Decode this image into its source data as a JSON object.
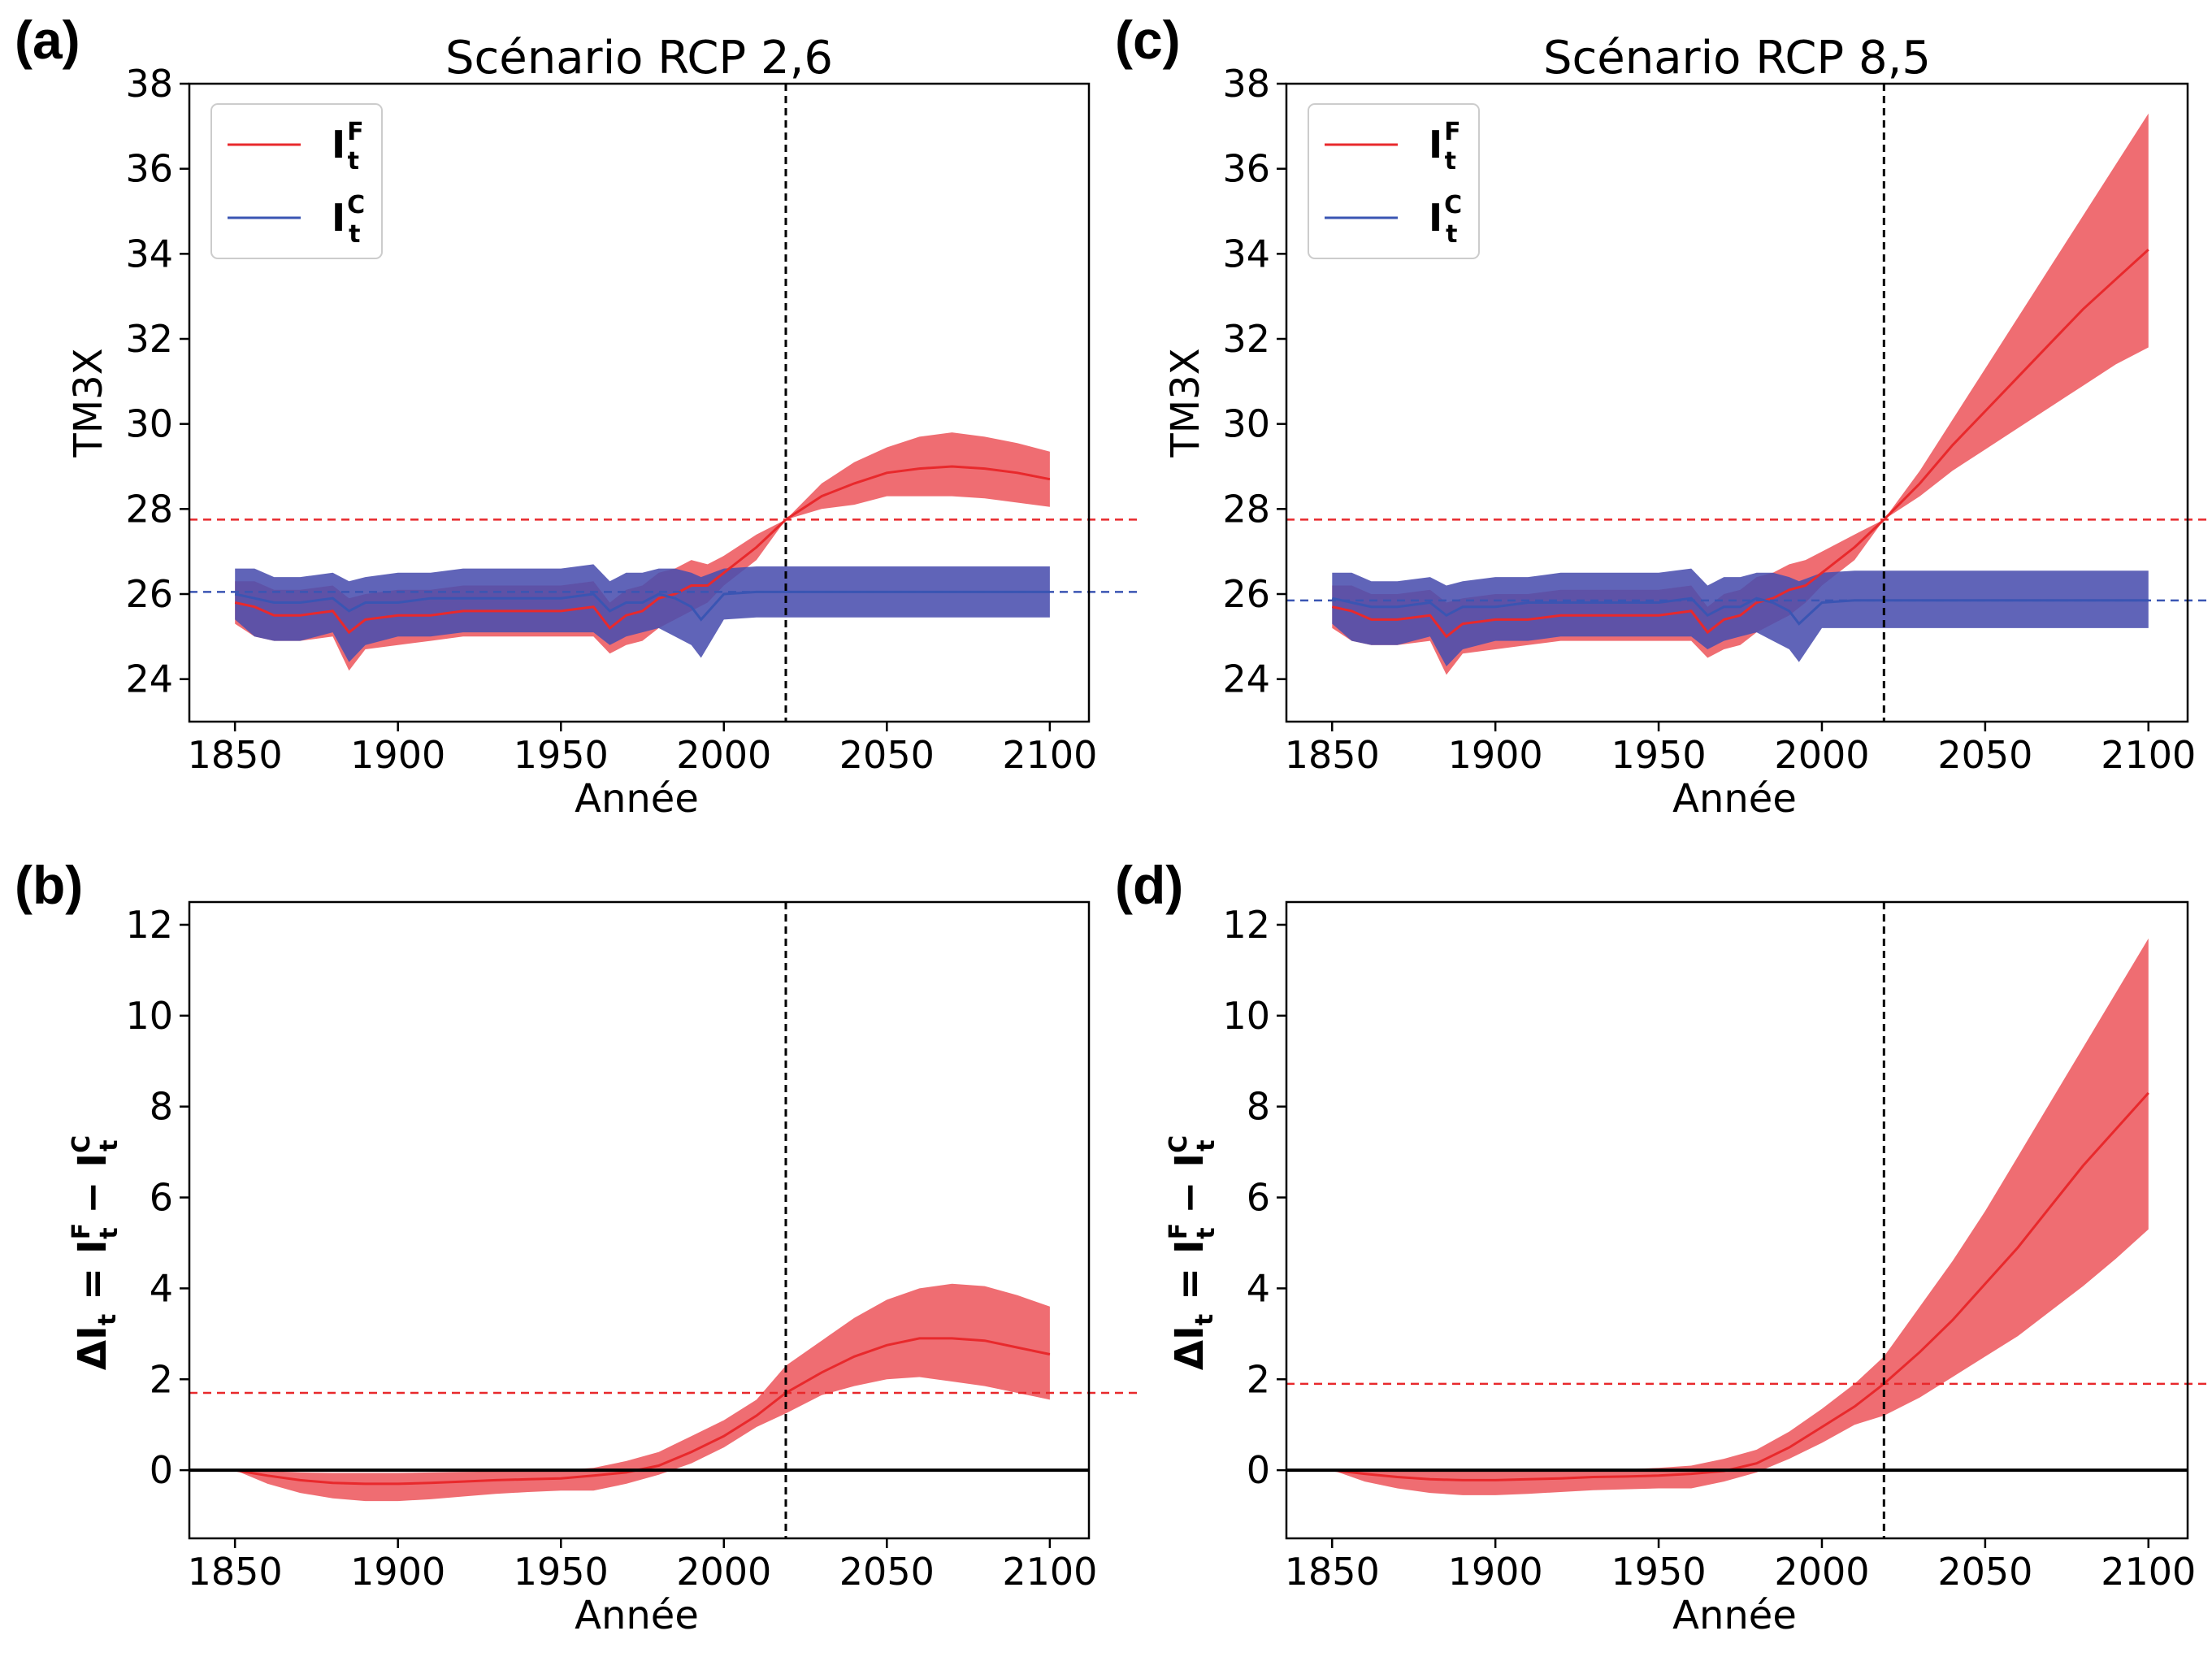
{
  "colors": {
    "factual": "#e8292c",
    "factual_band": "#ee6166",
    "counterfactual": "#3a55b3",
    "counterfactual_band": "#4a4fae",
    "overlap": "#5e2f8c",
    "event_line": "#000000"
  },
  "chart_data": [
    {
      "panel": "(a)",
      "type": "line",
      "title": "Scénario RCP 2,6",
      "xlabel": "Année",
      "ylabel": "TM3X",
      "xlim": [
        1836,
        2112
      ],
      "ylim": [
        23,
        38
      ],
      "xticks": [
        1850,
        1900,
        1950,
        2000,
        2050,
        2100
      ],
      "yticks": [
        24,
        26,
        28,
        30,
        32,
        34,
        36,
        38
      ],
      "event_year": 2019,
      "hlines": [
        {
          "y": 27.75,
          "color": "factual",
          "style": "dashed"
        },
        {
          "y": 26.05,
          "color": "counterfactual",
          "style": "dashed"
        }
      ],
      "legend": {
        "position": "top-left",
        "entries": [
          {
            "text": "I",
            "sup": "F",
            "sub": "t",
            "color": "factual"
          },
          {
            "text": "I",
            "sup": "C",
            "sub": "t",
            "color": "counterfactual"
          }
        ]
      },
      "series": [
        {
          "label": "I_t^F",
          "color": "factual",
          "x": [
            1850,
            1856,
            1862,
            1870,
            1880,
            1885,
            1890,
            1900,
            1910,
            1920,
            1930,
            1940,
            1950,
            1960,
            1965,
            1970,
            1975,
            1980,
            1985,
            1990,
            1995,
            2000,
            2010,
            2019,
            2030,
            2040,
            2050,
            2060,
            2070,
            2080,
            2090,
            2100
          ],
          "mid": [
            25.8,
            25.7,
            25.5,
            25.5,
            25.6,
            25.1,
            25.4,
            25.5,
            25.5,
            25.6,
            25.6,
            25.6,
            25.6,
            25.7,
            25.2,
            25.5,
            25.6,
            25.9,
            26.0,
            26.2,
            26.2,
            26.5,
            27.1,
            27.75,
            28.3,
            28.6,
            28.85,
            28.95,
            29.0,
            28.95,
            28.85,
            28.7
          ],
          "lower": [
            25.3,
            25.0,
            24.9,
            24.9,
            25.0,
            24.2,
            24.7,
            24.8,
            24.9,
            25.0,
            25.0,
            25.0,
            25.0,
            25.0,
            24.6,
            24.8,
            24.9,
            25.2,
            25.4,
            25.6,
            25.8,
            26.2,
            26.8,
            27.75,
            28.0,
            28.1,
            28.3,
            28.3,
            28.3,
            28.25,
            28.15,
            28.05
          ],
          "upper": [
            26.3,
            26.3,
            26.1,
            26.1,
            26.2,
            25.9,
            26.0,
            26.1,
            26.1,
            26.2,
            26.2,
            26.2,
            26.2,
            26.3,
            25.8,
            26.1,
            26.2,
            26.5,
            26.6,
            26.8,
            26.7,
            26.9,
            27.4,
            27.75,
            28.6,
            29.1,
            29.45,
            29.7,
            29.8,
            29.7,
            29.55,
            29.35
          ]
        },
        {
          "label": "I_t^C",
          "color": "counterfactual",
          "x": [
            1850,
            1856,
            1862,
            1870,
            1880,
            1885,
            1890,
            1900,
            1910,
            1920,
            1930,
            1940,
            1950,
            1960,
            1965,
            1970,
            1975,
            1980,
            1985,
            1990,
            1993,
            2000,
            2010,
            2019,
            2050,
            2100
          ],
          "mid": [
            26.0,
            25.9,
            25.8,
            25.8,
            25.9,
            25.6,
            25.8,
            25.8,
            25.9,
            25.9,
            25.9,
            25.9,
            25.9,
            26.0,
            25.6,
            25.8,
            25.8,
            26.0,
            25.9,
            25.7,
            25.4,
            26.0,
            26.05,
            26.05,
            26.05,
            26.05
          ],
          "lower": [
            25.4,
            25.0,
            24.9,
            24.9,
            25.1,
            24.4,
            24.8,
            25.0,
            25.0,
            25.1,
            25.1,
            25.1,
            25.1,
            25.1,
            24.8,
            25.0,
            25.1,
            25.2,
            25.0,
            24.8,
            24.5,
            25.4,
            25.45,
            25.45,
            25.45,
            25.45
          ],
          "upper": [
            26.6,
            26.6,
            26.4,
            26.4,
            26.5,
            26.3,
            26.4,
            26.5,
            26.5,
            26.6,
            26.6,
            26.6,
            26.6,
            26.7,
            26.3,
            26.5,
            26.5,
            26.6,
            26.6,
            26.5,
            26.4,
            26.6,
            26.65,
            26.65,
            26.65,
            26.65
          ]
        }
      ]
    },
    {
      "panel": "(c)",
      "type": "line",
      "title": "Scénario RCP 8,5",
      "xlabel": "Année",
      "ylabel": "TM3X",
      "xlim": [
        1836,
        2112
      ],
      "ylim": [
        23,
        38
      ],
      "xticks": [
        1850,
        1900,
        1950,
        2000,
        2050,
        2100
      ],
      "yticks": [
        24,
        26,
        28,
        30,
        32,
        34,
        36,
        38
      ],
      "event_year": 2019,
      "hlines": [
        {
          "y": 27.75,
          "color": "factual",
          "style": "dashed"
        },
        {
          "y": 25.85,
          "color": "counterfactual",
          "style": "dashed"
        }
      ],
      "legend": {
        "position": "top-left",
        "entries": [
          {
            "text": "I",
            "sup": "F",
            "sub": "t",
            "color": "factual"
          },
          {
            "text": "I",
            "sup": "C",
            "sub": "t",
            "color": "counterfactual"
          }
        ]
      },
      "series": [
        {
          "label": "I_t^F",
          "color": "factual",
          "x": [
            1850,
            1856,
            1862,
            1870,
            1880,
            1885,
            1890,
            1900,
            1910,
            1920,
            1930,
            1940,
            1950,
            1960,
            1965,
            1970,
            1975,
            1980,
            1985,
            1990,
            1995,
            2000,
            2010,
            2019,
            2030,
            2040,
            2050,
            2060,
            2070,
            2080,
            2090,
            2100
          ],
          "mid": [
            25.7,
            25.6,
            25.4,
            25.4,
            25.5,
            25.0,
            25.3,
            25.4,
            25.4,
            25.5,
            25.5,
            25.5,
            25.5,
            25.6,
            25.1,
            25.4,
            25.5,
            25.8,
            25.9,
            26.1,
            26.2,
            26.5,
            27.1,
            27.75,
            28.6,
            29.5,
            30.3,
            31.1,
            31.9,
            32.7,
            33.4,
            34.1
          ],
          "lower": [
            25.2,
            24.9,
            24.8,
            24.8,
            24.9,
            24.1,
            24.6,
            24.7,
            24.8,
            24.9,
            24.9,
            24.9,
            24.9,
            24.9,
            24.5,
            24.7,
            24.8,
            25.1,
            25.3,
            25.5,
            25.8,
            26.2,
            26.8,
            27.75,
            28.3,
            28.9,
            29.4,
            29.9,
            30.4,
            30.9,
            31.4,
            31.8
          ],
          "upper": [
            26.2,
            26.2,
            26.0,
            26.0,
            26.1,
            25.8,
            25.9,
            26.0,
            26.0,
            26.1,
            26.1,
            26.1,
            26.1,
            26.2,
            25.7,
            26.0,
            26.1,
            26.4,
            26.5,
            26.7,
            26.8,
            27.0,
            27.4,
            27.75,
            28.9,
            30.1,
            31.3,
            32.5,
            33.7,
            34.9,
            36.1,
            37.3
          ]
        },
        {
          "label": "I_t^C",
          "color": "counterfactual",
          "x": [
            1850,
            1856,
            1862,
            1870,
            1880,
            1885,
            1890,
            1900,
            1910,
            1920,
            1930,
            1940,
            1950,
            1960,
            1965,
            1970,
            1975,
            1980,
            1985,
            1990,
            1993,
            2000,
            2010,
            2019,
            2050,
            2100
          ],
          "mid": [
            25.9,
            25.8,
            25.7,
            25.7,
            25.8,
            25.5,
            25.7,
            25.7,
            25.8,
            25.8,
            25.8,
            25.8,
            25.8,
            25.9,
            25.5,
            25.7,
            25.7,
            25.9,
            25.8,
            25.6,
            25.3,
            25.8,
            25.85,
            25.85,
            25.85,
            25.85
          ],
          "lower": [
            25.3,
            24.9,
            24.8,
            24.8,
            25.0,
            24.3,
            24.7,
            24.9,
            24.9,
            25.0,
            25.0,
            25.0,
            25.0,
            25.0,
            24.7,
            24.9,
            25.0,
            25.1,
            24.9,
            24.7,
            24.4,
            25.2,
            25.2,
            25.2,
            25.2,
            25.2
          ],
          "upper": [
            26.5,
            26.5,
            26.3,
            26.3,
            26.4,
            26.2,
            26.3,
            26.4,
            26.4,
            26.5,
            26.5,
            26.5,
            26.5,
            26.6,
            26.2,
            26.4,
            26.4,
            26.5,
            26.5,
            26.4,
            26.3,
            26.5,
            26.55,
            26.55,
            26.55,
            26.55
          ]
        }
      ]
    },
    {
      "panel": "(b)",
      "type": "line",
      "title": "",
      "xlabel": "Année",
      "ylabel_parts": {
        "main": "ΔI",
        "sub": "t",
        "eq": " = I",
        "sup1": "F",
        "sub1": "t",
        "minus": " − I",
        "sup2": "C",
        "sub2": "t"
      },
      "xlim": [
        1836,
        2112
      ],
      "ylim": [
        -1.5,
        12.5
      ],
      "xticks": [
        1850,
        1900,
        1950,
        2000,
        2050,
        2100
      ],
      "yticks": [
        0,
        2,
        4,
        6,
        8,
        10,
        12
      ],
      "event_year": 2019,
      "hlines": [
        {
          "y": 1.7,
          "color": "factual",
          "style": "dashed"
        },
        {
          "y": 0,
          "color": "event_line",
          "style": "solid"
        }
      ],
      "series": [
        {
          "label": "ΔI_t",
          "color": "factual",
          "x": [
            1850,
            1860,
            1870,
            1880,
            1890,
            1900,
            1910,
            1920,
            1930,
            1940,
            1950,
            1960,
            1970,
            1980,
            1990,
            2000,
            2010,
            2019,
            2030,
            2040,
            2050,
            2060,
            2070,
            2080,
            2090,
            2100
          ],
          "mid": [
            0.0,
            -0.12,
            -0.22,
            -0.28,
            -0.3,
            -0.3,
            -0.28,
            -0.25,
            -0.22,
            -0.2,
            -0.18,
            -0.12,
            -0.05,
            0.1,
            0.4,
            0.75,
            1.2,
            1.7,
            2.15,
            2.5,
            2.75,
            2.9,
            2.9,
            2.85,
            2.7,
            2.55
          ],
          "lower": [
            0.0,
            -0.3,
            -0.5,
            -0.62,
            -0.68,
            -0.68,
            -0.64,
            -0.58,
            -0.52,
            -0.48,
            -0.45,
            -0.45,
            -0.3,
            -0.1,
            0.15,
            0.5,
            0.95,
            1.25,
            1.65,
            1.85,
            2.0,
            2.05,
            1.95,
            1.85,
            1.7,
            1.55
          ],
          "upper": [
            0.0,
            -0.02,
            -0.05,
            -0.06,
            -0.06,
            -0.06,
            -0.05,
            -0.04,
            -0.03,
            -0.02,
            0.0,
            0.05,
            0.2,
            0.4,
            0.75,
            1.1,
            1.55,
            2.3,
            2.85,
            3.35,
            3.75,
            4.0,
            4.1,
            4.05,
            3.85,
            3.6
          ]
        }
      ]
    },
    {
      "panel": "(d)",
      "type": "line",
      "title": "",
      "xlabel": "Année",
      "ylabel_parts": {
        "main": "ΔI",
        "sub": "t",
        "eq": " = I",
        "sup1": "F",
        "sub1": "t",
        "minus": " − I",
        "sup2": "C",
        "sub2": "t"
      },
      "xlim": [
        1836,
        2112
      ],
      "ylim": [
        -1.5,
        12.5
      ],
      "xticks": [
        1850,
        1900,
        1950,
        2000,
        2050,
        2100
      ],
      "yticks": [
        0,
        2,
        4,
        6,
        8,
        10,
        12
      ],
      "event_year": 2019,
      "hlines": [
        {
          "y": 1.9,
          "color": "factual",
          "style": "dashed"
        },
        {
          "y": 0,
          "color": "event_line",
          "style": "solid"
        }
      ],
      "series": [
        {
          "label": "ΔI_t",
          "color": "factual",
          "x": [
            1850,
            1860,
            1870,
            1880,
            1890,
            1900,
            1910,
            1920,
            1930,
            1940,
            1950,
            1960,
            1970,
            1980,
            1990,
            2000,
            2010,
            2019,
            2030,
            2040,
            2050,
            2060,
            2070,
            2080,
            2090,
            2100
          ],
          "mid": [
            0.0,
            -0.08,
            -0.15,
            -0.2,
            -0.22,
            -0.22,
            -0.2,
            -0.18,
            -0.15,
            -0.14,
            -0.12,
            -0.08,
            -0.02,
            0.15,
            0.5,
            0.95,
            1.4,
            1.9,
            2.6,
            3.3,
            4.1,
            4.9,
            5.8,
            6.7,
            7.5,
            8.3
          ],
          "lower": [
            0.0,
            -0.25,
            -0.4,
            -0.5,
            -0.55,
            -0.55,
            -0.52,
            -0.48,
            -0.44,
            -0.42,
            -0.4,
            -0.4,
            -0.25,
            -0.05,
            0.25,
            0.6,
            1.0,
            1.2,
            1.6,
            2.05,
            2.5,
            2.95,
            3.5,
            4.05,
            4.65,
            5.3
          ],
          "upper": [
            0.0,
            -0.01,
            -0.02,
            -0.03,
            -0.03,
            -0.03,
            -0.02,
            -0.01,
            0.0,
            0.02,
            0.05,
            0.1,
            0.25,
            0.45,
            0.85,
            1.35,
            1.9,
            2.5,
            3.6,
            4.6,
            5.7,
            6.9,
            8.1,
            9.3,
            10.5,
            11.7
          ]
        }
      ]
    }
  ]
}
